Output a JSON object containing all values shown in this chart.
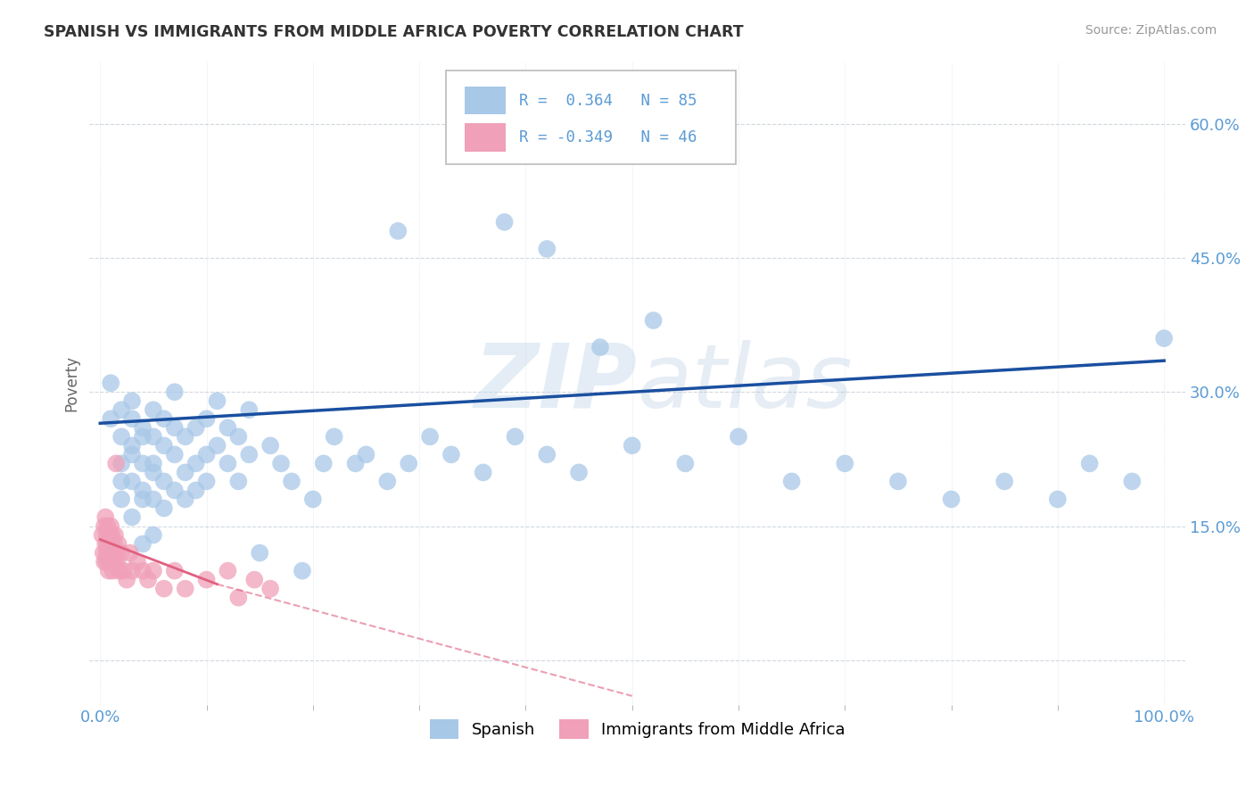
{
  "title": "SPANISH VS IMMIGRANTS FROM MIDDLE AFRICA POVERTY CORRELATION CHART",
  "source": "Source: ZipAtlas.com",
  "ylabel": "Poverty",
  "xlim": [
    -0.01,
    1.02
  ],
  "ylim": [
    -0.05,
    0.67
  ],
  "ytick_vals": [
    0.0,
    0.15,
    0.3,
    0.45,
    0.6
  ],
  "ytick_labels": [
    "",
    "15.0%",
    "30.0%",
    "45.0%",
    "60.0%"
  ],
  "xtick_vals": [
    0.0,
    1.0
  ],
  "xtick_labels": [
    "0.0%",
    "100.0%"
  ],
  "spanish_color": "#a8c8e8",
  "immigrant_color": "#f0a0b8",
  "trend_blue": "#1a4fa0",
  "trend_pink": "#e06080",
  "R_spanish": 0.364,
  "N_spanish": 85,
  "R_immigrant": -0.349,
  "N_immigrant": 46,
  "watermark": "ZIPatlas",
  "tick_color": "#5b9bd5",
  "grid_color": "#d0d8e0",
  "spanish_x": [
    0.01,
    0.01,
    0.02,
    0.02,
    0.02,
    0.02,
    0.02,
    0.03,
    0.03,
    0.03,
    0.03,
    0.03,
    0.03,
    0.04,
    0.04,
    0.04,
    0.04,
    0.04,
    0.04,
    0.05,
    0.05,
    0.05,
    0.05,
    0.05,
    0.05,
    0.06,
    0.06,
    0.06,
    0.06,
    0.07,
    0.07,
    0.07,
    0.07,
    0.08,
    0.08,
    0.08,
    0.09,
    0.09,
    0.09,
    0.1,
    0.1,
    0.1,
    0.11,
    0.11,
    0.12,
    0.12,
    0.13,
    0.13,
    0.14,
    0.14,
    0.15,
    0.16,
    0.17,
    0.18,
    0.19,
    0.2,
    0.21,
    0.22,
    0.24,
    0.25,
    0.27,
    0.29,
    0.31,
    0.33,
    0.36,
    0.39,
    0.42,
    0.45,
    0.5,
    0.55,
    0.6,
    0.65,
    0.7,
    0.75,
    0.8,
    0.85,
    0.9,
    0.93,
    0.97,
    1.0,
    0.28,
    0.38,
    0.47,
    0.52,
    0.42
  ],
  "spanish_y": [
    0.27,
    0.31,
    0.25,
    0.28,
    0.22,
    0.2,
    0.18,
    0.24,
    0.27,
    0.2,
    0.16,
    0.23,
    0.29,
    0.18,
    0.22,
    0.26,
    0.19,
    0.25,
    0.13,
    0.21,
    0.25,
    0.18,
    0.14,
    0.22,
    0.28,
    0.2,
    0.24,
    0.17,
    0.27,
    0.19,
    0.23,
    0.26,
    0.3,
    0.21,
    0.25,
    0.18,
    0.22,
    0.26,
    0.19,
    0.23,
    0.27,
    0.2,
    0.24,
    0.29,
    0.22,
    0.26,
    0.2,
    0.25,
    0.23,
    0.28,
    0.12,
    0.24,
    0.22,
    0.2,
    0.1,
    0.18,
    0.22,
    0.25,
    0.22,
    0.23,
    0.2,
    0.22,
    0.25,
    0.23,
    0.21,
    0.25,
    0.23,
    0.21,
    0.24,
    0.22,
    0.25,
    0.2,
    0.22,
    0.2,
    0.18,
    0.2,
    0.18,
    0.22,
    0.2,
    0.36,
    0.48,
    0.49,
    0.35,
    0.38,
    0.46
  ],
  "immigrant_x": [
    0.002,
    0.003,
    0.004,
    0.004,
    0.005,
    0.005,
    0.006,
    0.006,
    0.006,
    0.007,
    0.007,
    0.008,
    0.008,
    0.009,
    0.009,
    0.01,
    0.01,
    0.011,
    0.011,
    0.012,
    0.012,
    0.013,
    0.013,
    0.014,
    0.015,
    0.015,
    0.016,
    0.017,
    0.018,
    0.02,
    0.022,
    0.025,
    0.028,
    0.03,
    0.035,
    0.04,
    0.045,
    0.05,
    0.06,
    0.07,
    0.08,
    0.1,
    0.12,
    0.13,
    0.145,
    0.16
  ],
  "immigrant_y": [
    0.14,
    0.12,
    0.15,
    0.11,
    0.13,
    0.16,
    0.12,
    0.14,
    0.11,
    0.15,
    0.13,
    0.12,
    0.1,
    0.14,
    0.11,
    0.13,
    0.15,
    0.11,
    0.14,
    0.12,
    0.1,
    0.13,
    0.11,
    0.14,
    0.22,
    0.12,
    0.11,
    0.13,
    0.1,
    0.12,
    0.1,
    0.09,
    0.12,
    0.1,
    0.11,
    0.1,
    0.09,
    0.1,
    0.08,
    0.1,
    0.08,
    0.09,
    0.1,
    0.07,
    0.09,
    0.08
  ],
  "trend_blue_x0": 0.0,
  "trend_blue_y0": 0.265,
  "trend_blue_x1": 1.0,
  "trend_blue_y1": 0.335,
  "trend_pink_solid_x0": 0.0,
  "trend_pink_solid_y0": 0.135,
  "trend_pink_solid_x1": 0.11,
  "trend_pink_solid_y1": 0.085,
  "trend_pink_dash_x0": 0.11,
  "trend_pink_dash_y0": 0.085,
  "trend_pink_dash_x1": 0.5,
  "trend_pink_dash_y1": -0.04
}
